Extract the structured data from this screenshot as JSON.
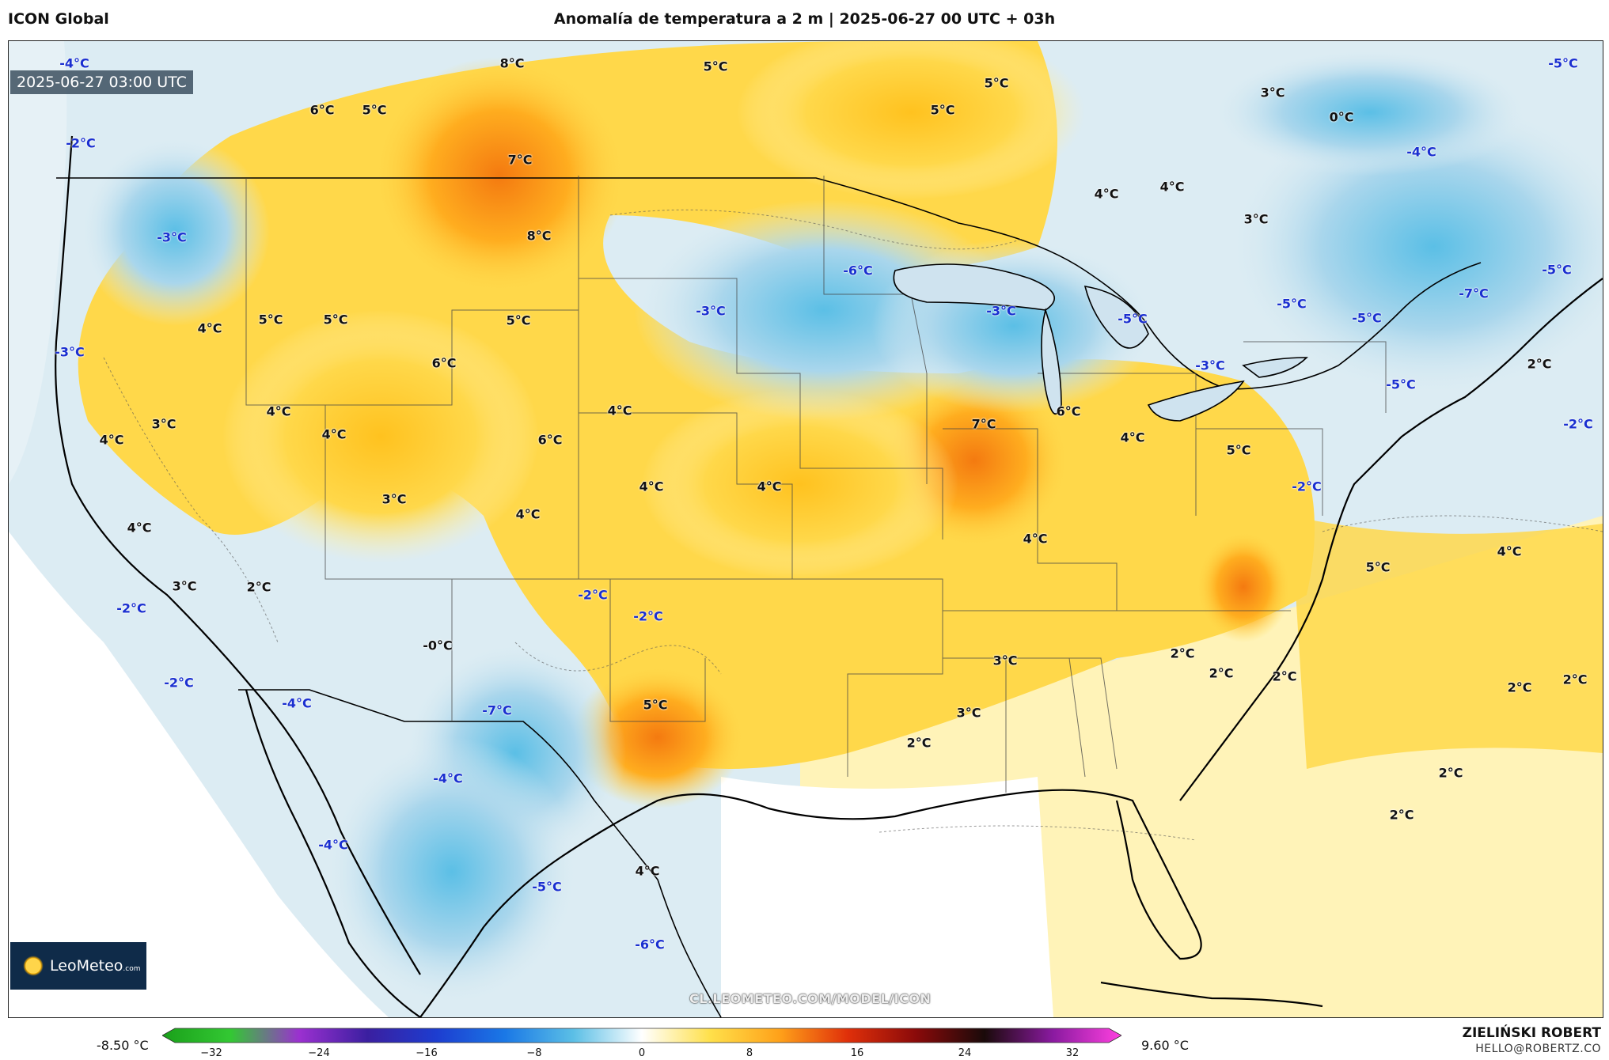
{
  "header": {
    "model": "ICON Global",
    "title": "Anomalía de temperatura a 2 m | 2025-06-27 00 UTC + 03h"
  },
  "map": {
    "valid_time": "2025-06-27 03:00 UTC",
    "watermark": "CL.LEOMETEO.COM/MODEL/ICON",
    "logo": {
      "name": "LeoMeteo",
      "suffix": ".com"
    },
    "colors": {
      "ocean_land_neutral": "#ffffff",
      "cold_light": "#dcecf3",
      "cold_mid": "#a9d6ec",
      "cold_strong": "#5bbfe6",
      "warm_light": "#fff3b8",
      "warm_mid": "#ffd84a",
      "warm_strong": "#ffad1f",
      "warm_hot": "#f47a10",
      "label_negative": "#1a2fd0",
      "label_positive": "#111111"
    },
    "labels": [
      {
        "text": "-4°C",
        "sign": "neg"
      },
      {
        "text": "8°C",
        "sign": "pos"
      },
      {
        "text": "5°C",
        "sign": "pos"
      },
      {
        "text": "5°C",
        "sign": "pos"
      },
      {
        "text": "3°C",
        "sign": "pos"
      },
      {
        "text": "-5°C",
        "sign": "neg"
      },
      {
        "text": "6°C",
        "sign": "pos"
      },
      {
        "text": "5°C",
        "sign": "pos"
      },
      {
        "text": "5°C",
        "sign": "pos"
      },
      {
        "text": "0°C",
        "sign": "pos"
      },
      {
        "text": "-2°C",
        "sign": "neg"
      },
      {
        "text": "7°C",
        "sign": "pos"
      },
      {
        "text": "-4°C",
        "sign": "neg"
      },
      {
        "text": "4°C",
        "sign": "pos"
      },
      {
        "text": "4°C",
        "sign": "pos"
      },
      {
        "text": "3°C",
        "sign": "pos"
      },
      {
        "text": "-3°C",
        "sign": "neg"
      },
      {
        "text": "8°C",
        "sign": "pos"
      },
      {
        "text": "-6°C",
        "sign": "neg"
      },
      {
        "text": "-5°C",
        "sign": "neg"
      },
      {
        "text": "-3°C",
        "sign": "neg"
      },
      {
        "text": "-3°C",
        "sign": "neg"
      },
      {
        "text": "-5°C",
        "sign": "neg"
      },
      {
        "text": "-5°C",
        "sign": "neg"
      },
      {
        "text": "-5°C",
        "sign": "neg"
      },
      {
        "text": "-7°C",
        "sign": "neg"
      },
      {
        "text": "4°C",
        "sign": "pos"
      },
      {
        "text": "5°C",
        "sign": "pos"
      },
      {
        "text": "5°C",
        "sign": "pos"
      },
      {
        "text": "5°C",
        "sign": "pos"
      },
      {
        "text": "-3°C",
        "sign": "neg"
      },
      {
        "text": "-3°C",
        "sign": "neg"
      },
      {
        "text": "6°C",
        "sign": "pos"
      },
      {
        "text": "2°C",
        "sign": "pos"
      },
      {
        "text": "-5°C",
        "sign": "neg"
      },
      {
        "text": "4°C",
        "sign": "pos"
      },
      {
        "text": "3°C",
        "sign": "pos"
      },
      {
        "text": "4°C",
        "sign": "pos"
      },
      {
        "text": "4°C",
        "sign": "pos"
      },
      {
        "text": "4°C",
        "sign": "pos"
      },
      {
        "text": "6°C",
        "sign": "pos"
      },
      {
        "text": "7°C",
        "sign": "pos"
      },
      {
        "text": "6°C",
        "sign": "pos"
      },
      {
        "text": "4°C",
        "sign": "pos"
      },
      {
        "text": "5°C",
        "sign": "pos"
      },
      {
        "text": "-2°C",
        "sign": "neg"
      },
      {
        "text": "3°C",
        "sign": "pos"
      },
      {
        "text": "4°C",
        "sign": "pos"
      },
      {
        "text": "4°C",
        "sign": "pos"
      },
      {
        "text": "4°C",
        "sign": "pos"
      },
      {
        "text": "-2°C",
        "sign": "neg"
      },
      {
        "text": "4°C",
        "sign": "pos"
      },
      {
        "text": "4°C",
        "sign": "pos"
      },
      {
        "text": "5°C",
        "sign": "pos"
      },
      {
        "text": "4°C",
        "sign": "pos"
      },
      {
        "text": "3°C",
        "sign": "pos"
      },
      {
        "text": "2°C",
        "sign": "pos"
      },
      {
        "text": "-2°C",
        "sign": "neg"
      },
      {
        "text": "-2°C",
        "sign": "neg"
      },
      {
        "text": "-2°C",
        "sign": "neg"
      },
      {
        "text": "-0°C",
        "sign": "pos"
      },
      {
        "text": "2°C",
        "sign": "pos"
      },
      {
        "text": "3°C",
        "sign": "pos"
      },
      {
        "text": "2°C",
        "sign": "pos"
      },
      {
        "text": "2°C",
        "sign": "pos"
      },
      {
        "text": "2°C",
        "sign": "pos"
      },
      {
        "text": "2°C",
        "sign": "pos"
      },
      {
        "text": "-2°C",
        "sign": "neg"
      },
      {
        "text": "-4°C",
        "sign": "neg"
      },
      {
        "text": "-7°C",
        "sign": "neg"
      },
      {
        "text": "5°C",
        "sign": "pos"
      },
      {
        "text": "3°C",
        "sign": "pos"
      },
      {
        "text": "2°C",
        "sign": "pos"
      },
      {
        "text": "-4°C",
        "sign": "neg"
      },
      {
        "text": "2°C",
        "sign": "pos"
      },
      {
        "text": "-4°C",
        "sign": "neg"
      },
      {
        "text": "2°C",
        "sign": "pos"
      },
      {
        "text": "4°C",
        "sign": "pos"
      },
      {
        "text": "-5°C",
        "sign": "neg"
      },
      {
        "text": "-6°C",
        "sign": "neg"
      }
    ]
  },
  "colorbar": {
    "min_label": "-8.50 °C",
    "max_label": "9.60 °C",
    "ticks": [
      "−32",
      "−24",
      "−16",
      "−8",
      "0",
      "8",
      "16",
      "24",
      "32"
    ],
    "stops": [
      "#1aa01a",
      "#33c833",
      "#9b30d0",
      "#3a1fa0",
      "#1d3dd0",
      "#1a78e6",
      "#5bbfe6",
      "#ffffff",
      "#ffe04a",
      "#ffa21a",
      "#e0300a",
      "#8a0a0a",
      "#1a0a0a",
      "#8a1aa0",
      "#ff40e0"
    ]
  },
  "footer": {
    "author": "ZIELIŃSKI ROBERT",
    "email": "HELLO@ROBERTZ.CO"
  }
}
